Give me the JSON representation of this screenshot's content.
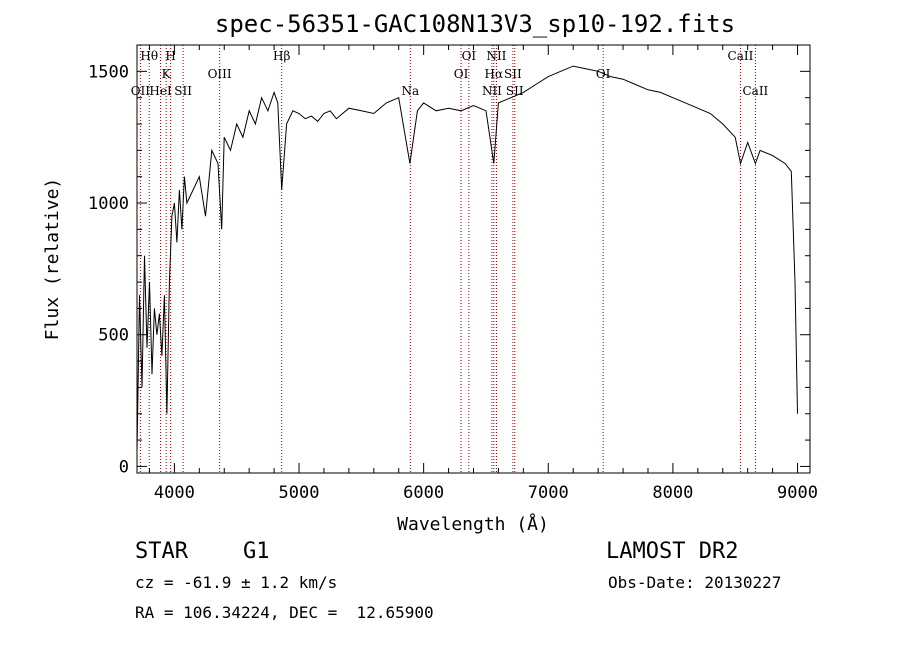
{
  "chart_data": {
    "type": "line",
    "title": "spec-56351-GAC108N13V3_sp10-192.fits",
    "xlabel": "Wavelength (Å)",
    "ylabel": "Flux (relative)",
    "xlim": [
      3700,
      9100
    ],
    "ylim": [
      -25,
      1600
    ],
    "xticks": [
      4000,
      5000,
      6000,
      7000,
      8000,
      9000
    ],
    "yticks": [
      0,
      500,
      1000,
      1500
    ],
    "grid": false,
    "series": [
      {
        "x": [
          3700,
          3720,
          3740,
          3760,
          3780,
          3800,
          3820,
          3840,
          3860,
          3880,
          3900,
          3920,
          3940,
          3960,
          3980,
          4000,
          4020,
          4040,
          4060,
          4080,
          4100,
          4150,
          4200,
          4250,
          4300,
          4350,
          4380,
          4400,
          4450,
          4500,
          4550,
          4600,
          4650,
          4700,
          4750,
          4800,
          4830,
          4861,
          4900,
          4950,
          5000,
          5050,
          5100,
          5150,
          5200,
          5250,
          5300,
          5400,
          5500,
          5600,
          5700,
          5800,
          5890,
          5950,
          6000,
          6100,
          6200,
          6300,
          6400,
          6500,
          6563,
          6600,
          6700,
          6800,
          6900,
          7000,
          7100,
          7200,
          7300,
          7400,
          7500,
          7600,
          7700,
          7800,
          7900,
          8000,
          8100,
          8200,
          8300,
          8400,
          8500,
          8542,
          8600,
          8662,
          8700,
          8800,
          8900,
          8950,
          8980,
          9000
        ],
        "y": [
          50,
          650,
          300,
          800,
          450,
          700,
          350,
          600,
          500,
          580,
          420,
          650,
          200,
          700,
          950,
          1000,
          850,
          1050,
          900,
          1100,
          1000,
          1050,
          1100,
          950,
          1200,
          1150,
          900,
          1250,
          1200,
          1300,
          1250,
          1350,
          1300,
          1400,
          1350,
          1420,
          1380,
          1050,
          1300,
          1350,
          1340,
          1320,
          1330,
          1310,
          1340,
          1350,
          1320,
          1360,
          1350,
          1340,
          1380,
          1400,
          1150,
          1350,
          1380,
          1350,
          1360,
          1350,
          1370,
          1350,
          1150,
          1380,
          1400,
          1420,
          1450,
          1480,
          1500,
          1520,
          1510,
          1500,
          1480,
          1470,
          1450,
          1430,
          1420,
          1400,
          1380,
          1360,
          1340,
          1300,
          1250,
          1150,
          1230,
          1150,
          1200,
          1180,
          1150,
          1120,
          700,
          200
        ]
      }
    ],
    "emission_lines": [
      {
        "label": "Hθ",
        "wl": 3798,
        "row": 0
      },
      {
        "label": "H",
        "wl": 3970,
        "row": 0
      },
      {
        "label": "K",
        "wl": 3934,
        "row": 1
      },
      {
        "label": "OII",
        "wl": 3727,
        "row": 2
      },
      {
        "label": "HeI",
        "wl": 3889,
        "row": 2
      },
      {
        "label": "SII",
        "wl": 4070,
        "row": 2
      },
      {
        "label": "OIII",
        "wl": 4363,
        "row": 1
      },
      {
        "label": "Hβ",
        "wl": 4861,
        "row": 0
      },
      {
        "label": "Na",
        "wl": 5893,
        "row": 2
      },
      {
        "label": "OI",
        "wl": 6363,
        "row": 0
      },
      {
        "label": "OI",
        "wl": 6300,
        "row": 1
      },
      {
        "label": "NII",
        "wl": 6584,
        "row": 0
      },
      {
        "label": "Hα",
        "wl": 6563,
        "row": 1
      },
      {
        "label": "SII",
        "wl": 6716,
        "row": 1
      },
      {
        "label": "NII",
        "wl": 6548,
        "row": 2
      },
      {
        "label": "SII",
        "wl": 6731,
        "row": 2
      },
      {
        "label": "OI",
        "wl": 7440,
        "row": 1
      },
      {
        "label": "CaII",
        "wl": 8542,
        "row": 0
      },
      {
        "label": "CaII",
        "wl": 8662,
        "row": 2
      }
    ]
  },
  "info": {
    "object_class": "STAR",
    "subclass": "G1",
    "survey": "LAMOST DR2",
    "cz": "cz = -61.9 ± 1.2 km/s",
    "obs_date": "Obs-Date: 20130227",
    "coords": "RA = 106.34224, DEC =  12.65900"
  }
}
